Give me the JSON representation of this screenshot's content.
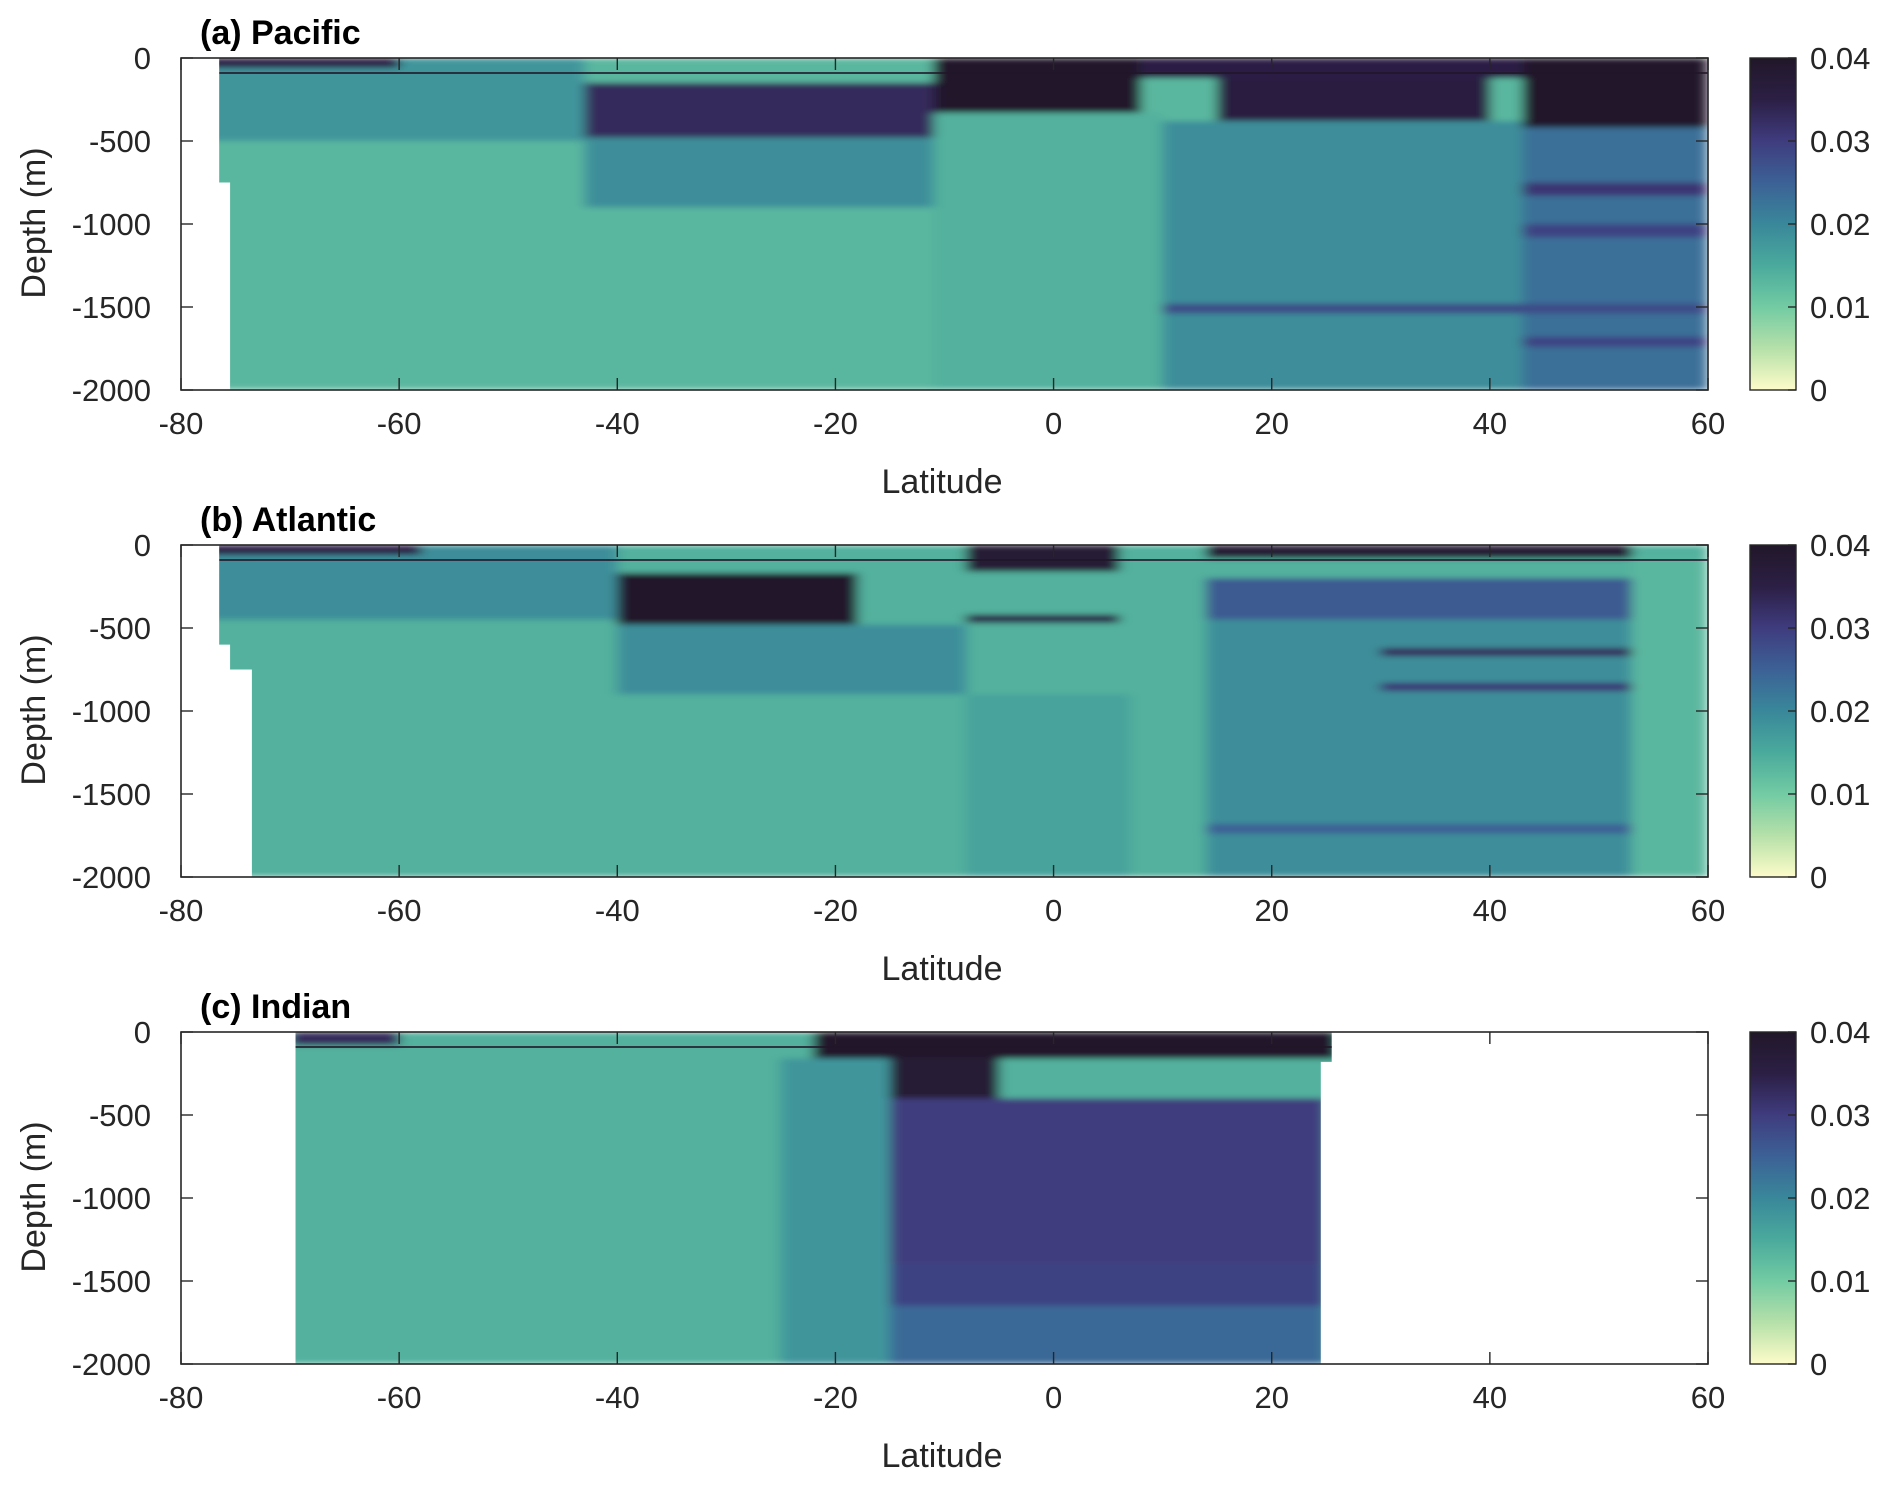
{
  "colormap": {
    "stops": [
      "#fdfcc9",
      "#b6e0a9",
      "#72cba3",
      "#4aaa9c",
      "#39879a",
      "#3c6196",
      "#3f3c7e",
      "#2c1f45",
      "#211729"
    ]
  },
  "chart_data": [
    {
      "type": "heatmap",
      "title": "(a) Pacific",
      "xlabel": "Latitude",
      "ylabel": "Depth (m)",
      "xlim": [
        -80,
        60
      ],
      "ylim": [
        -2000,
        0
      ],
      "xticks": [
        "-80",
        "-60",
        "-40",
        "-20",
        "0",
        "20",
        "40",
        "60"
      ],
      "yticks": [
        "0",
        "-500",
        "-1000",
        "-1500",
        "-2000"
      ],
      "colorbar": {
        "clim": [
          0,
          0.04
        ],
        "ticks": [
          "0",
          "0.01",
          "0.02",
          "0.03",
          "0.04"
        ]
      },
      "coverage": [
        {
          "lat_min": -76.5,
          "lat_max": 60,
          "depth_min": 0,
          "depth_max": 750
        },
        {
          "lat_min": -75.5,
          "lat_max": 60,
          "depth_min": 750,
          "depth_max": 2000
        }
      ],
      "regions": [
        {
          "lat": [
            -80,
            60
          ],
          "depth": [
            0,
            2000
          ],
          "value": 0.013
        },
        {
          "lat": [
            -80,
            -43
          ],
          "depth": [
            0,
            500
          ],
          "value": 0.018
        },
        {
          "lat": [
            -80,
            -60
          ],
          "depth": [
            0,
            60
          ],
          "value": 0.035
        },
        {
          "lat": [
            -43,
            -11
          ],
          "depth": [
            150,
            480
          ],
          "value": 0.033
        },
        {
          "lat": [
            -43,
            -11
          ],
          "depth": [
            480,
            900
          ],
          "value": 0.019
        },
        {
          "lat": [
            -11,
            8
          ],
          "depth": [
            0,
            330
          ],
          "value": 0.04
        },
        {
          "lat": [
            -11,
            10
          ],
          "depth": [
            330,
            2000
          ],
          "value": 0.014
        },
        {
          "lat": [
            8,
            43
          ],
          "depth": [
            0,
            120
          ],
          "value": 0.035
        },
        {
          "lat": [
            15,
            40
          ],
          "depth": [
            120,
            380
          ],
          "value": 0.036
        },
        {
          "lat": [
            10,
            43
          ],
          "depth": [
            380,
            2000
          ],
          "value": 0.019
        },
        {
          "lat": [
            43,
            60
          ],
          "depth": [
            0,
            420
          ],
          "value": 0.04
        },
        {
          "lat": [
            43,
            60
          ],
          "depth": [
            420,
            2000
          ],
          "value": 0.023
        },
        {
          "lat": [
            43,
            60
          ],
          "depth": [
            750,
            830
          ],
          "value": 0.031
        },
        {
          "lat": [
            43,
            60
          ],
          "depth": [
            1000,
            1080
          ],
          "value": 0.029
        },
        {
          "lat": [
            10,
            60
          ],
          "depth": [
            1480,
            1540
          ],
          "value": 0.028
        },
        {
          "lat": [
            43,
            60
          ],
          "depth": [
            1680,
            1740
          ],
          "value": 0.029
        }
      ]
    },
    {
      "type": "heatmap",
      "title": "(b) Atlantic",
      "xlabel": "Latitude",
      "ylabel": "Depth (m)",
      "xlim": [
        -80,
        60
      ],
      "ylim": [
        -2000,
        0
      ],
      "xticks": [
        "-80",
        "-60",
        "-40",
        "-20",
        "0",
        "20",
        "40",
        "60"
      ],
      "yticks": [
        "0",
        "-500",
        "-1000",
        "-1500",
        "-2000"
      ],
      "colorbar": {
        "clim": [
          0,
          0.04
        ],
        "ticks": [
          "0",
          "0.01",
          "0.02",
          "0.03",
          "0.04"
        ]
      },
      "coverage": [
        {
          "lat_min": -76.5,
          "lat_max": 60,
          "depth_min": 0,
          "depth_max": 600
        },
        {
          "lat_min": -75.5,
          "lat_max": 60,
          "depth_min": 600,
          "depth_max": 750
        },
        {
          "lat_min": -73.5,
          "lat_max": 60,
          "depth_min": 750,
          "depth_max": 2000
        }
      ],
      "regions": [
        {
          "lat": [
            -80,
            60
          ],
          "depth": [
            0,
            2000
          ],
          "value": 0.014
        },
        {
          "lat": [
            -80,
            -40
          ],
          "depth": [
            0,
            450
          ],
          "value": 0.019
        },
        {
          "lat": [
            -80,
            -58
          ],
          "depth": [
            0,
            60
          ],
          "value": 0.035
        },
        {
          "lat": [
            -40,
            -18
          ],
          "depth": [
            170,
            480
          ],
          "value": 0.04
        },
        {
          "lat": [
            -40,
            -8
          ],
          "depth": [
            480,
            900
          ],
          "value": 0.019
        },
        {
          "lat": [
            -8,
            6
          ],
          "depth": [
            0,
            160
          ],
          "value": 0.038
        },
        {
          "lat": [
            -8,
            6
          ],
          "depth": [
            420,
            470
          ],
          "value": 0.035
        },
        {
          "lat": [
            -8,
            7
          ],
          "depth": [
            900,
            2000
          ],
          "value": 0.016
        },
        {
          "lat": [
            14,
            53
          ],
          "depth": [
            0,
            80
          ],
          "value": 0.038
        },
        {
          "lat": [
            14,
            53
          ],
          "depth": [
            200,
            450
          ],
          "value": 0.026
        },
        {
          "lat": [
            14,
            53
          ],
          "depth": [
            450,
            2000
          ],
          "value": 0.019
        },
        {
          "lat": [
            30,
            53
          ],
          "depth": [
            620,
            670
          ],
          "value": 0.033
        },
        {
          "lat": [
            30,
            53
          ],
          "depth": [
            830,
            880
          ],
          "value": 0.031
        },
        {
          "lat": [
            14,
            53
          ],
          "depth": [
            1680,
            1740
          ],
          "value": 0.025
        },
        {
          "lat": [
            53,
            60
          ],
          "depth": [
            80,
            2000
          ],
          "value": 0.013
        }
      ]
    },
    {
      "type": "heatmap",
      "title": "(c) Indian",
      "xlabel": "Latitude",
      "ylabel": "Depth (m)",
      "xlim": [
        -80,
        60
      ],
      "ylim": [
        -2000,
        0
      ],
      "xticks": [
        "-80",
        "-60",
        "-40",
        "-20",
        "0",
        "20",
        "40",
        "60"
      ],
      "yticks": [
        "0",
        "-500",
        "-1000",
        "-1500",
        "-2000"
      ],
      "colorbar": {
        "clim": [
          0,
          0.04
        ],
        "ticks": [
          "0",
          "0.01",
          "0.02",
          "0.03",
          "0.04"
        ]
      },
      "coverage": [
        {
          "lat_min": -69.5,
          "lat_max": 25.5,
          "depth_min": 0,
          "depth_max": 180
        },
        {
          "lat_min": -69.5,
          "lat_max": 24.5,
          "depth_min": 180,
          "depth_max": 2000
        }
      ],
      "regions": [
        {
          "lat": [
            -80,
            60
          ],
          "depth": [
            0,
            2000
          ],
          "value": 0.014
        },
        {
          "lat": [
            -70,
            -60
          ],
          "depth": [
            0,
            80
          ],
          "value": 0.033
        },
        {
          "lat": [
            -22,
            26
          ],
          "depth": [
            0,
            160
          ],
          "value": 0.04
        },
        {
          "lat": [
            -15,
            -5
          ],
          "depth": [
            160,
            450
          ],
          "value": 0.038
        },
        {
          "lat": [
            -15,
            25
          ],
          "depth": [
            400,
            1400
          ],
          "value": 0.03
        },
        {
          "lat": [
            -15,
            25
          ],
          "depth": [
            1400,
            1650
          ],
          "value": 0.029
        },
        {
          "lat": [
            -15,
            25
          ],
          "depth": [
            1650,
            2000
          ],
          "value": 0.024
        },
        {
          "lat": [
            -25,
            -15
          ],
          "depth": [
            160,
            2000
          ],
          "value": 0.018
        }
      ]
    }
  ]
}
